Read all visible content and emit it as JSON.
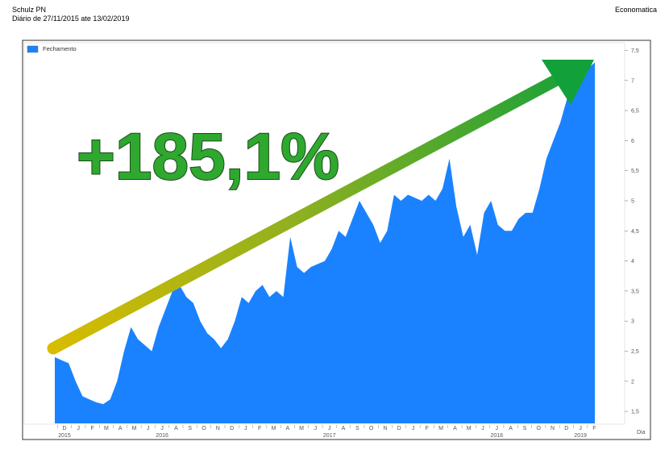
{
  "chart_data": {
    "type": "area",
    "title": "Schulz PN",
    "subtitle": "Diário de 27/11/2015 ate 13/02/2019",
    "source": "Economatica",
    "annotation": "+185,1%",
    "x_label": "Dia",
    "x_axis_months": [
      "D",
      "J",
      "F",
      "M",
      "A",
      "M",
      "J",
      "J",
      "A",
      "S",
      "O",
      "N",
      "D",
      "J",
      "F",
      "M",
      "A",
      "M",
      "J",
      "J",
      "A",
      "S",
      "O",
      "N",
      "D",
      "J",
      "F",
      "M",
      "A",
      "M",
      "J",
      "J",
      "A",
      "S",
      "O",
      "N",
      "D",
      "J",
      "F"
    ],
    "x_axis_years": [
      "2015",
      "2016",
      "2017",
      "2018",
      "2019"
    ],
    "series": [
      {
        "name": "Fechamento",
        "color": "#1a82ff",
        "values": [
          2.4,
          2.35,
          2.3,
          2.0,
          1.75,
          1.7,
          1.65,
          1.62,
          1.7,
          2.0,
          2.5,
          2.9,
          2.7,
          2.6,
          2.5,
          2.9,
          3.2,
          3.5,
          3.6,
          3.4,
          3.3,
          3.0,
          2.8,
          2.7,
          2.55,
          2.7,
          3.0,
          3.4,
          3.3,
          3.5,
          3.6,
          3.4,
          3.5,
          3.4,
          4.4,
          3.9,
          3.8,
          3.9,
          3.95,
          4.0,
          4.2,
          4.5,
          4.4,
          4.7,
          5.0,
          4.8,
          4.6,
          4.3,
          4.5,
          5.1,
          5.0,
          5.1,
          5.05,
          5.0,
          5.1,
          5.0,
          5.2,
          5.7,
          4.9,
          4.4,
          4.6,
          4.1,
          4.8,
          5.0,
          4.6,
          4.5,
          4.5,
          4.7,
          4.8,
          4.8,
          5.2,
          5.7,
          6.0,
          6.3,
          6.7,
          6.9,
          7.1,
          7.2,
          7.3
        ]
      }
    ],
    "ylim": [
      1.3,
      7.6
    ],
    "yticks": [
      {
        "value": 1.5,
        "label": "1,5"
      },
      2,
      {
        "value": 2.5,
        "label": "2,5"
      },
      3,
      {
        "value": 3.5,
        "label": "3,5"
      },
      4,
      {
        "value": 4.5,
        "label": "4,5"
      },
      5,
      {
        "value": 5.5,
        "label": "5,5"
      },
      6,
      {
        "value": 6.5,
        "label": "6,5"
      },
      7,
      {
        "value": 7.5,
        "label": "7,5"
      }
    ]
  }
}
